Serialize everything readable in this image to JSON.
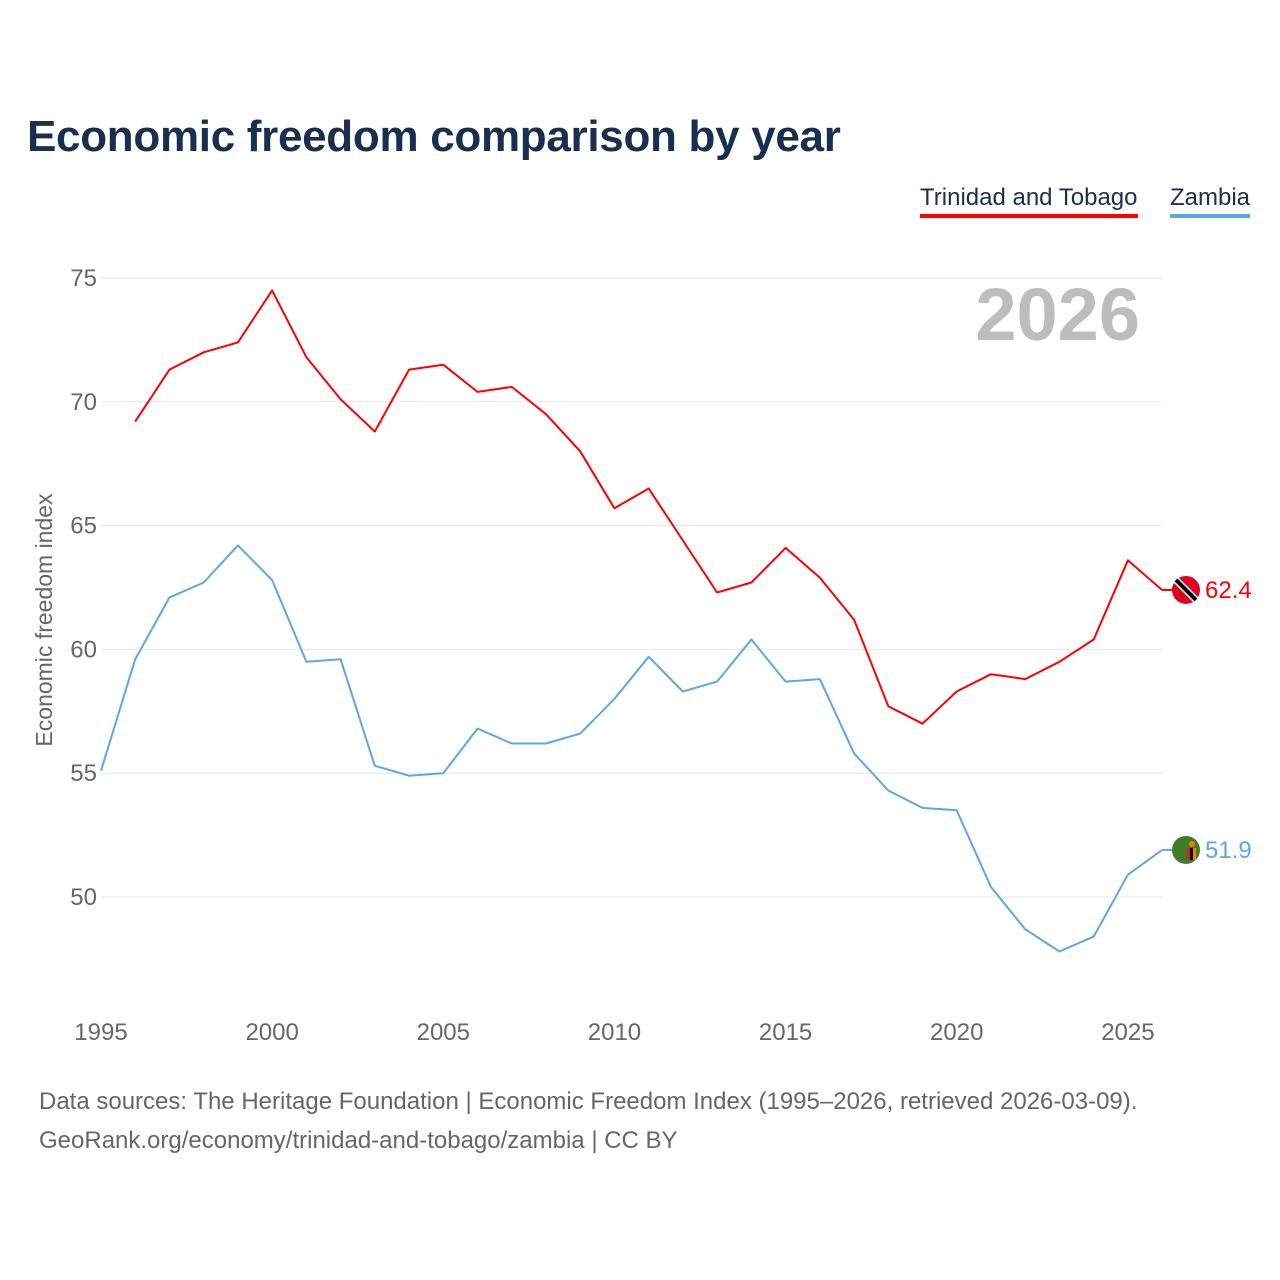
{
  "chart_data": {
    "type": "line",
    "title": "Economic freedom comparison by year",
    "xlabel": "",
    "ylabel": "Economic freedom index",
    "xlim": [
      1995,
      2026
    ],
    "ylim": [
      45.8,
      76.1
    ],
    "grid": true,
    "legend_placement": "top-right",
    "year_label": "2026",
    "xticks": [
      1995,
      2000,
      2005,
      2010,
      2015,
      2020,
      2025
    ],
    "yticks": [
      50,
      55,
      60,
      65,
      70,
      75
    ],
    "series": [
      {
        "name": "Trinidad and Tobago",
        "color": "#ff0000",
        "end_label": "62.4",
        "x": [
          1996,
          1997,
          1998,
          1999,
          2000,
          2001,
          2002,
          2003,
          2004,
          2005,
          2006,
          2007,
          2008,
          2009,
          2010,
          2011,
          2012,
          2013,
          2014,
          2015,
          2016,
          2017,
          2018,
          2019,
          2020,
          2021,
          2022,
          2023,
          2024,
          2025,
          2026
        ],
        "values": [
          69.2,
          71.3,
          72.0,
          72.4,
          74.5,
          71.8,
          70.1,
          68.8,
          71.3,
          71.5,
          70.4,
          70.6,
          69.5,
          68.0,
          65.7,
          66.5,
          64.4,
          62.3,
          62.7,
          64.1,
          62.9,
          61.2,
          57.7,
          57.0,
          58.3,
          59.0,
          58.8,
          59.5,
          60.4,
          63.6,
          62.4
        ]
      },
      {
        "name": "Zambia",
        "color": "#5ca6ea",
        "end_label": "51.9",
        "x": [
          1995,
          1996,
          1997,
          1998,
          1999,
          2000,
          2001,
          2002,
          2003,
          2004,
          2005,
          2006,
          2007,
          2008,
          2009,
          2010,
          2011,
          2012,
          2013,
          2014,
          2015,
          2016,
          2017,
          2018,
          2019,
          2020,
          2021,
          2022,
          2023,
          2024,
          2025,
          2026
        ],
        "values": [
          55.1,
          59.6,
          62.1,
          62.7,
          64.2,
          62.8,
          59.5,
          59.6,
          55.3,
          54.9,
          55.0,
          56.8,
          56.2,
          56.2,
          56.6,
          58.0,
          59.7,
          58.3,
          58.7,
          60.4,
          58.7,
          58.8,
          55.8,
          54.3,
          53.6,
          53.5,
          50.4,
          48.7,
          47.8,
          48.4,
          50.9,
          51.9
        ]
      }
    ]
  },
  "footer": {
    "line1": "Data sources: The Heritage Foundation | Economic Freedom Index (1995–2026, retrieved 2026-03-09).",
    "line2": "GeoRank.org/economy/trinidad-and-tobago/zambia | CC BY"
  }
}
